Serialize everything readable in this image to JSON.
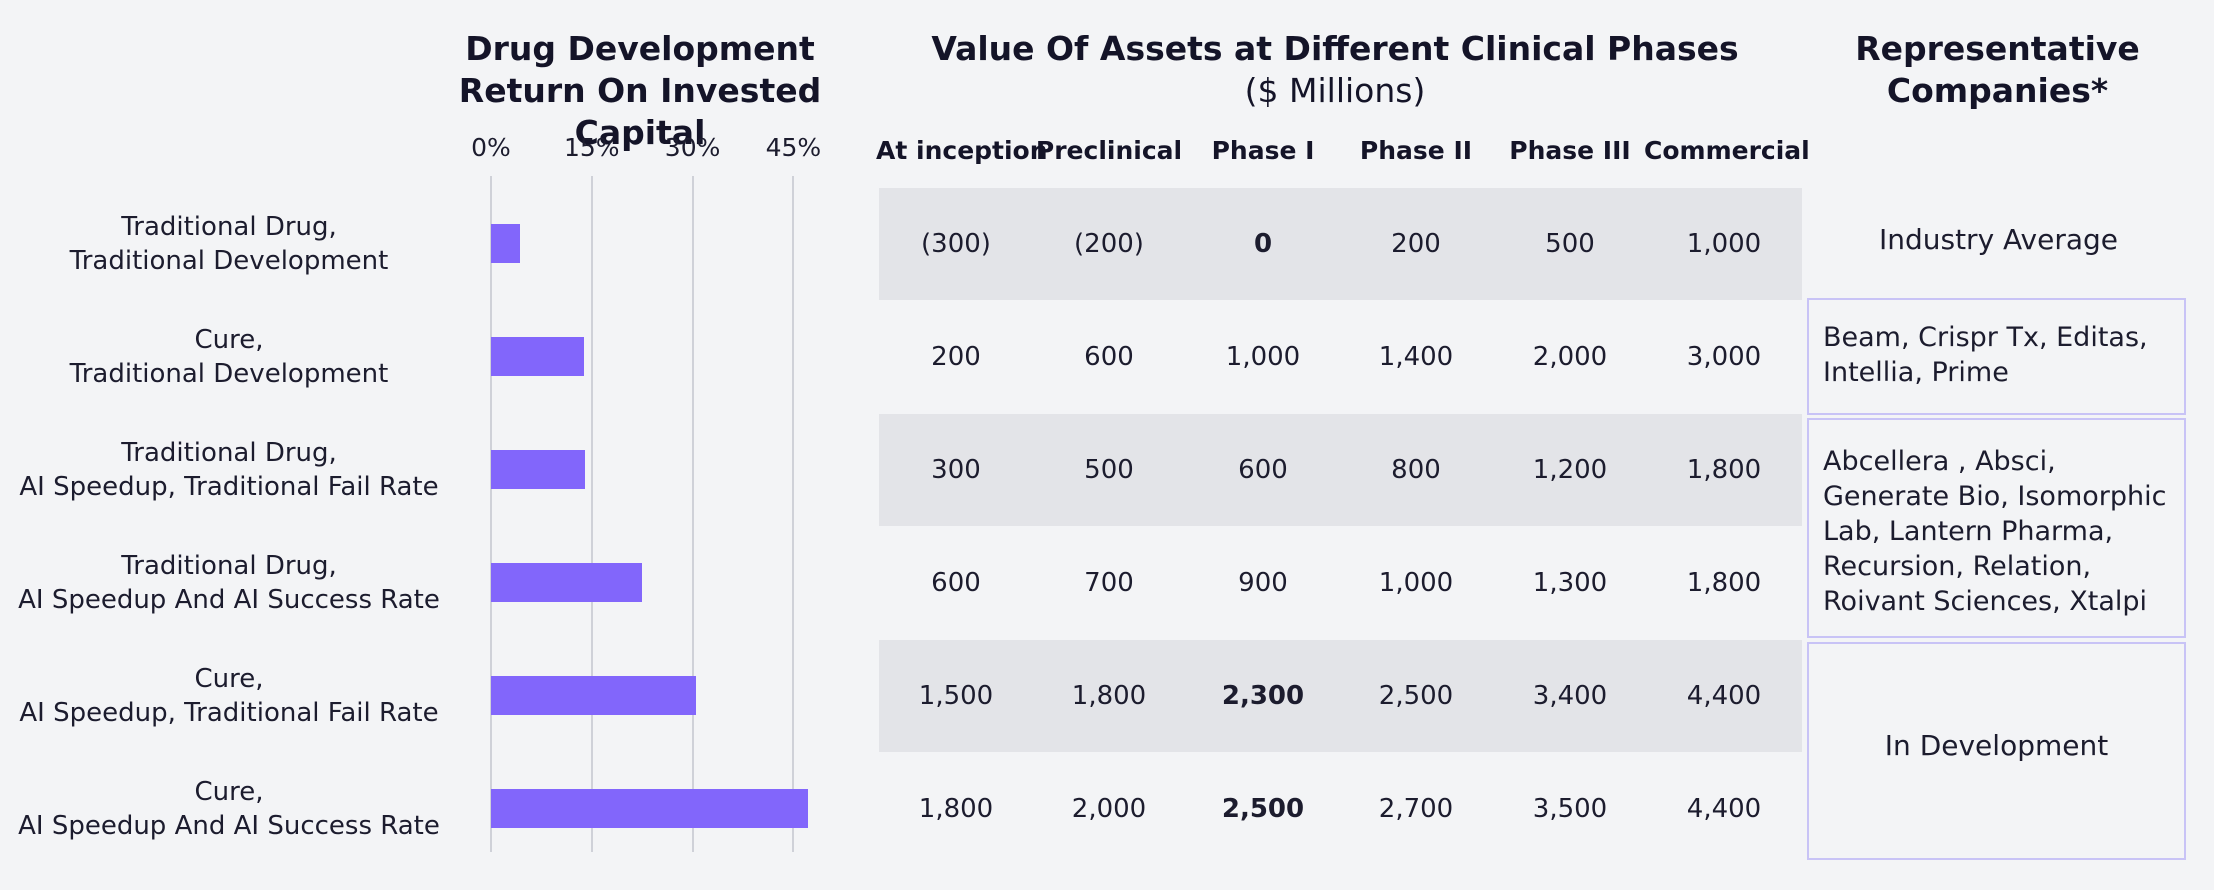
{
  "left_title_line1": "Drug Development",
  "left_title_line2": "Return On Invested Capital",
  "mid_title": "Value Of Assets at Different Clinical Phases",
  "mid_subtitle": "($ Millions)",
  "right_title_line1": "Representative",
  "right_title_line2": "Companies*",
  "chart_data": [
    {
      "type": "bar",
      "orientation": "horizontal",
      "title": "Drug Development Return On Invested Capital",
      "tick_labels": [
        "0%",
        "15%",
        "30%",
        "45%"
      ],
      "ticks": [
        0,
        15,
        30,
        45
      ],
      "xlim": [
        0,
        48
      ],
      "grid": true,
      "categories": [
        [
          "Traditional Drug,",
          "Traditional Development"
        ],
        [
          "Cure,",
          "Traditional Development"
        ],
        [
          "Traditional Drug,",
          "AI Speedup, Traditional Fail Rate"
        ],
        [
          "Traditional Drug,",
          "AI Speedup And AI Success Rate"
        ],
        [
          "Cure,",
          "AI Speedup, Traditional Fail Rate"
        ],
        [
          "Cure,",
          "AI Speedup And AI Success Rate"
        ]
      ],
      "values": [
        4.3,
        13.8,
        14.0,
        22.4,
        30.5,
        47.2
      ],
      "bar_color": "#8266fb"
    },
    {
      "type": "table",
      "title": "Value Of Assets at Different Clinical Phases",
      "subtitle": "($ Millions)",
      "columns": [
        "At inception",
        "Preclinical",
        "Phase I",
        "Phase II",
        "Phase III",
        "Commercial"
      ],
      "rows": [
        [
          "(300)",
          "(200)",
          "0",
          "200",
          "500",
          "1,000"
        ],
        [
          "200",
          "600",
          "1,000",
          "1,400",
          "2,000",
          "3,000"
        ],
        [
          "300",
          "500",
          "600",
          "800",
          "1,200",
          "1,800"
        ],
        [
          "600",
          "700",
          "900",
          "1,000",
          "1,300",
          "1,800"
        ],
        [
          "1,500",
          "1,800",
          "2,300",
          "2,500",
          "3,400",
          "4,400"
        ],
        [
          "1,800",
          "2,000",
          "2,500",
          "2,700",
          "3,500",
          "4,400"
        ]
      ],
      "bold_cells": [
        [
          0,
          2
        ],
        [
          4,
          2
        ],
        [
          5,
          2
        ]
      ],
      "band_color": "#e3e4e8"
    }
  ],
  "companies": {
    "industry_average": "Industry Average",
    "crispr_group": [
      "Beam, Crispr Tx, Editas,",
      "Intellia, Prime"
    ],
    "ai_group": [
      "Abcellera , Absci,",
      "Generate Bio, Isomorphic",
      "Lab, Lantern Pharma,",
      "Recursion, Relation,",
      "Roivant Sciences, Xtalpi"
    ],
    "in_development": "In Development",
    "box_border_color": "#c8c3f6"
  }
}
